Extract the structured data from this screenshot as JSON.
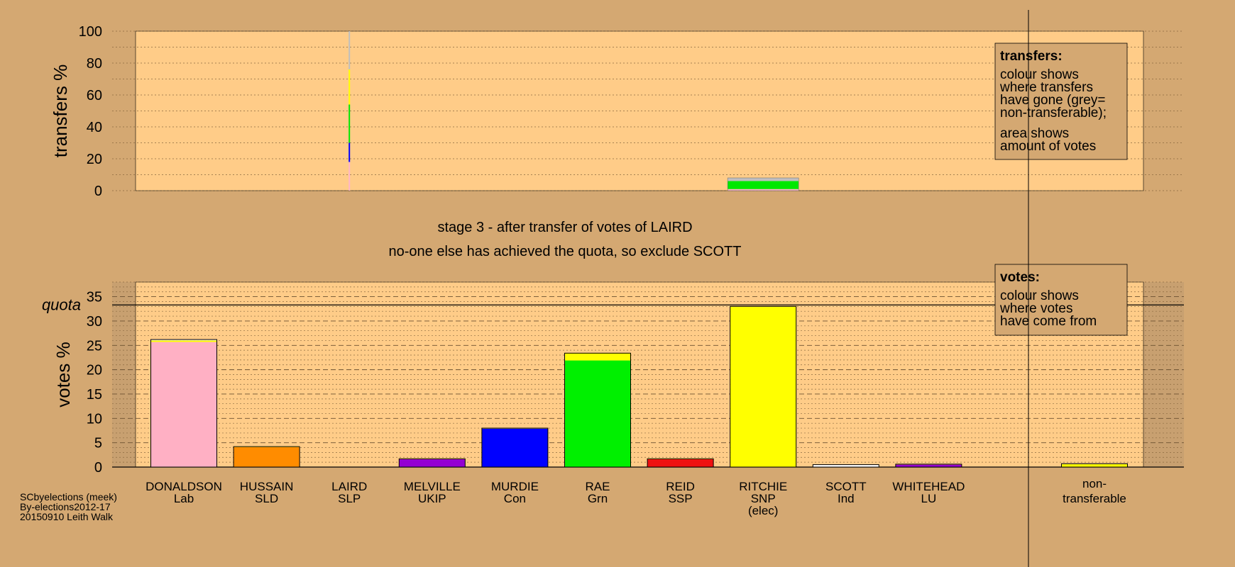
{
  "chart_data": [
    {
      "type": "bar",
      "name": "transfers",
      "ylabel": "transfers %",
      "ylim": [
        0,
        100
      ],
      "yticks": [
        0,
        20,
        40,
        60,
        80,
        100
      ],
      "legend": {
        "title": "transfers:",
        "lines": [
          "colour shows",
          "where transfers",
          "have gone (grey=",
          "non-transferable);"
        ],
        "lines2": [
          "area shows",
          "amount of votes"
        ]
      },
      "candidates": [
        "DONALDSON",
        "HUSSAIN",
        "LAIRD",
        "MELVILLE",
        "MURDIE",
        "RAE",
        "REID",
        "RITCHIE",
        "SCOTT",
        "WHITEHEAD",
        "non-transferable"
      ],
      "bars": [
        {
          "candidate": "LAIRD",
          "segments": [
            {
              "to": "DONALDSON",
              "value": 18,
              "color": "#ffb6c8"
            },
            {
              "to": "MURDIE",
              "value": 12,
              "color": "#0000ff"
            },
            {
              "to": "RAE",
              "value": 24,
              "color": "#00e800"
            },
            {
              "to": "RITCHIE",
              "value": 22,
              "color": "#ffff00"
            },
            {
              "to": "non-transferable",
              "value": 24,
              "color": "#bfbfbf"
            }
          ]
        },
        {
          "candidate": "RITCHIE",
          "segments": [
            {
              "to": "DONALDSON",
              "value": 1,
              "color": "#ffb6c8"
            },
            {
              "to": "RAE",
              "value": 5,
              "color": "#00e800"
            },
            {
              "to": "non-transferable",
              "value": 2,
              "color": "#bfbfbf"
            }
          ]
        }
      ]
    },
    {
      "type": "bar",
      "name": "votes",
      "ylabel": "votes %",
      "ylim": [
        0,
        38
      ],
      "yticks": [
        0,
        5,
        10,
        15,
        20,
        25,
        30,
        35
      ],
      "quota": 33.3,
      "quota_label": "quota",
      "legend": {
        "title": "votes:",
        "lines": [
          "colour shows",
          "where votes",
          "have come from"
        ]
      },
      "candidates": [
        {
          "name": "DONALDSON",
          "party": "Lab",
          "segments": [
            {
              "value": 25.7,
              "color": "#ffb0c4"
            },
            {
              "value": 0.3,
              "color": "#ffff00"
            },
            {
              "value": 0.2,
              "color": "#ffffff"
            }
          ]
        },
        {
          "name": "HUSSAIN",
          "party": "SLD",
          "segments": [
            {
              "value": 4.1,
              "color": "#ff8c00"
            },
            {
              "value": 0.1,
              "color": "#ffff00"
            }
          ]
        },
        {
          "name": "LAIRD",
          "party": "SLP",
          "segments": [
            {
              "value": 0.0,
              "color": "#ff2b2b"
            }
          ]
        },
        {
          "name": "MELVILLE",
          "party": "UKIP",
          "segments": [
            {
              "value": 1.6,
              "color": "#9400d3"
            },
            {
              "value": 0.1,
              "color": "#ffff00"
            }
          ]
        },
        {
          "name": "MURDIE",
          "party": "Con",
          "segments": [
            {
              "value": 7.9,
              "color": "#0000ff"
            },
            {
              "value": 0.1,
              "color": "#ffff00"
            }
          ]
        },
        {
          "name": "RAE",
          "party": "Grn",
          "segments": [
            {
              "value": 21.9,
              "color": "#00f000"
            },
            {
              "value": 1.5,
              "color": "#ffff00"
            }
          ]
        },
        {
          "name": "REID",
          "party": "SSP",
          "segments": [
            {
              "value": 1.6,
              "color": "#ee1111"
            },
            {
              "value": 0.1,
              "color": "#ffff00"
            }
          ]
        },
        {
          "name": "RITCHIE",
          "party": "SNP",
          "note": "(elec)",
          "segments": [
            {
              "value": 33.0,
              "color": "#ffff00"
            }
          ]
        },
        {
          "name": "SCOTT",
          "party": "Ind",
          "segments": [
            {
              "value": 0.5,
              "color": "#ffffff"
            }
          ]
        },
        {
          "name": "WHITEHEAD",
          "party": "LU",
          "segments": [
            {
              "value": 0.5,
              "color": "#9400d3"
            },
            {
              "value": 0.1,
              "color": "#ffff00"
            }
          ]
        }
      ],
      "nontransferable": {
        "label1": "non-",
        "label2": "transferable",
        "segments": [
          {
            "value": 0.6,
            "color": "#ffff00"
          },
          {
            "value": 0.1,
            "color": "#bfbfbf"
          }
        ]
      }
    }
  ],
  "stage_text": "stage 3 - after transfer of votes of LAIRD",
  "exclude_text": "no-one else has achieved the quota, so exclude SCOTT",
  "footer": {
    "line1": "SCbyelections (meek)",
    "line2": "By-elections2012-17",
    "line3": "20150910 Leith Walk"
  },
  "colors": {
    "background": "#d4a872",
    "plot_bg": "#ffcc88",
    "shade": "#c8a070"
  }
}
